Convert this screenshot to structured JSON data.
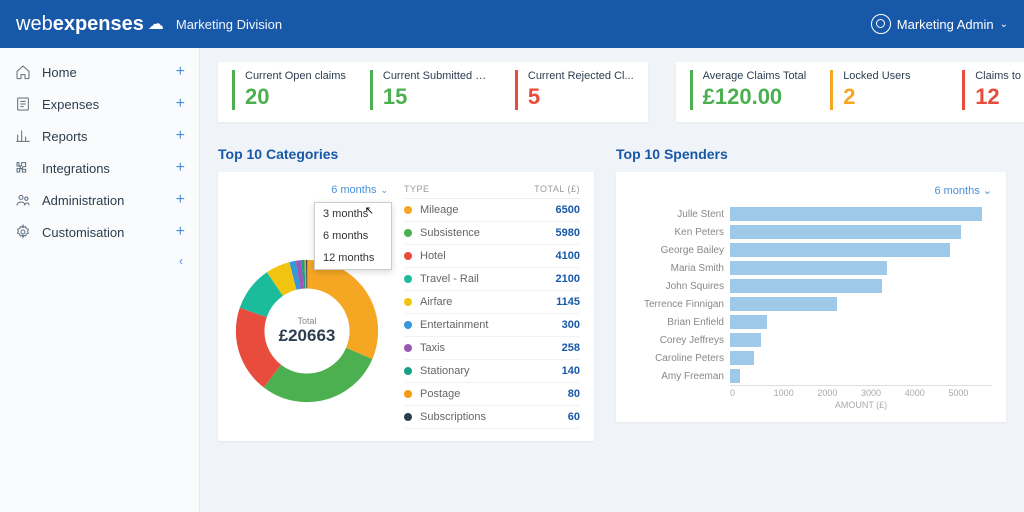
{
  "header": {
    "brand_prefix": "web",
    "brand_suffix": "expenses",
    "division": "Marketing Division",
    "user": "Marketing Admin"
  },
  "sidebar": {
    "items": [
      {
        "label": "Home",
        "icon": "home"
      },
      {
        "label": "Expenses",
        "icon": "receipt"
      },
      {
        "label": "Reports",
        "icon": "chart"
      },
      {
        "label": "Integrations",
        "icon": "puzzle"
      },
      {
        "label": "Administration",
        "icon": "people"
      },
      {
        "label": "Customisation",
        "icon": "gear"
      }
    ]
  },
  "kpi_left": [
    {
      "label": "Current Open claims",
      "value": "20",
      "color": "#4cb050"
    },
    {
      "label": "Current Submitted C...",
      "value": "15",
      "color": "#4cb050"
    },
    {
      "label": "Current Rejected Cl...",
      "value": "5",
      "color": "#e74c3c"
    }
  ],
  "kpi_right": [
    {
      "label": "Average Claims Total",
      "value": "£120.00",
      "color": "#4cb050"
    },
    {
      "label": "Locked Users",
      "value": "2",
      "color": "#f5a623"
    },
    {
      "label": "Claims to Process",
      "value": "12",
      "color": "#e74c3c"
    }
  ],
  "categories": {
    "title": "Top 10 Categories",
    "period_selected": "6 months",
    "period_options": [
      "3 months",
      "6 months",
      "12 months"
    ],
    "donut_total_label": "Total",
    "donut_total_value": "£20663",
    "head_type": "TYPE",
    "head_total": "TOTAL (£)",
    "items": [
      {
        "name": "Mileage",
        "value": 6500,
        "color": "#f5a623"
      },
      {
        "name": "Subsistence",
        "value": 5980,
        "color": "#4cb050"
      },
      {
        "name": "Hotel",
        "value": 4100,
        "color": "#e74c3c"
      },
      {
        "name": "Travel - Rail",
        "value": 2100,
        "color": "#1abc9c"
      },
      {
        "name": "Airfare",
        "value": 1145,
        "color": "#f1c40f"
      },
      {
        "name": "Entertainment",
        "value": 300,
        "color": "#3498db"
      },
      {
        "name": "Taxis",
        "value": 258,
        "color": "#9b59b6"
      },
      {
        "name": "Stationary",
        "value": 140,
        "color": "#16a085"
      },
      {
        "name": "Postage",
        "value": 80,
        "color": "#f39c12"
      },
      {
        "name": "Subscriptions",
        "value": 60,
        "color": "#2c3e50"
      }
    ]
  },
  "spenders": {
    "title": "Top 10 Spenders",
    "period_selected": "6 months",
    "axis_label": "AMOUNT (£)",
    "ticks": [
      "0",
      "1000",
      "2000",
      "3000",
      "4000",
      "5000"
    ],
    "max": 5000,
    "bar_color": "#9ec9e8",
    "items": [
      {
        "name": "Julle Stent",
        "value": 4800
      },
      {
        "name": "Ken Peters",
        "value": 4400
      },
      {
        "name": "George Bailey",
        "value": 4200
      },
      {
        "name": "Maria Smith",
        "value": 3000
      },
      {
        "name": "John Squires",
        "value": 2900
      },
      {
        "name": "Terrence Finnigan",
        "value": 2050
      },
      {
        "name": "Brian Enfield",
        "value": 700
      },
      {
        "name": "Corey Jeffreys",
        "value": 600
      },
      {
        "name": "Caroline Peters",
        "value": 450
      },
      {
        "name": "Amy Freeman",
        "value": 200
      }
    ]
  }
}
